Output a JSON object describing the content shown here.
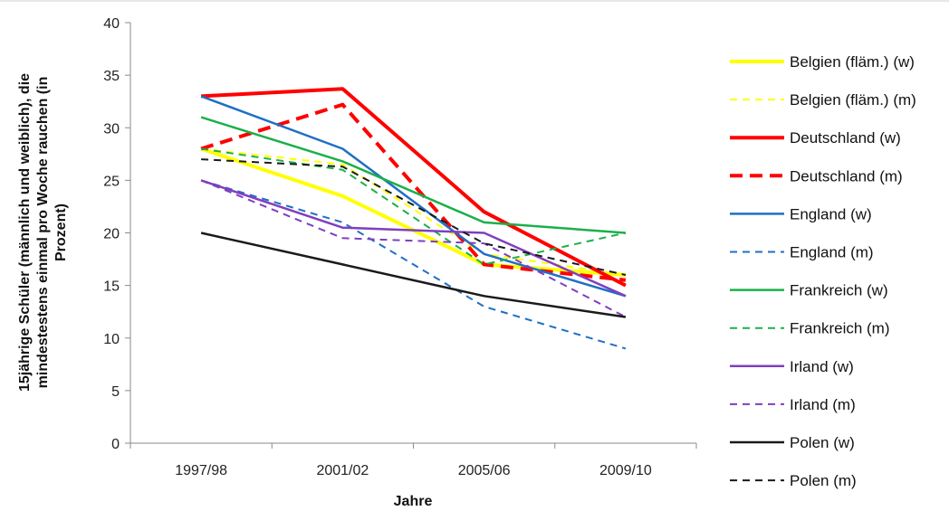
{
  "chart_data": {
    "type": "line",
    "title": "",
    "xlabel": "Jahre",
    "ylabel": "15jährige Schüler (männlich und weiblich), die mindestestens einmal pro Woche rauchen (in Prozent)",
    "ylabel_lines": [
      "15jährige Schüler (männlich und weiblich), die",
      "mindestestens einmal pro Woche rauchen (in",
      "Prozent)"
    ],
    "categories": [
      "1997/98",
      "2001/02",
      "2005/06",
      "2009/10"
    ],
    "ylim": [
      0,
      40
    ],
    "yticks": [
      0,
      5,
      10,
      15,
      20,
      25,
      30,
      35,
      40
    ],
    "ytick_labels": [
      "0",
      "5",
      "10",
      "15",
      "20",
      "25",
      "30",
      "35",
      "40"
    ],
    "grid": false,
    "legend_position": "right",
    "series": [
      {
        "name": "Belgien (fläm.) (w)",
        "values": [
          28,
          23.5,
          17,
          16
        ],
        "color": "#ffff00",
        "dash": "solid",
        "width": 4
      },
      {
        "name": "Belgien (fläm.) (m)",
        "values": [
          28,
          26.5,
          18,
          16
        ],
        "color": "#ffff00",
        "dash": "dashed",
        "width": 2
      },
      {
        "name": "Deutschland (w)",
        "values": [
          33,
          33.7,
          22,
          15
        ],
        "color": "#ff0000",
        "dash": "solid",
        "width": 4
      },
      {
        "name": "Deutschland (m)",
        "values": [
          28,
          32.2,
          17,
          15.5
        ],
        "color": "#ff0000",
        "dash": "dashed",
        "width": 4
      },
      {
        "name": "England (w)",
        "values": [
          33,
          28,
          18,
          14
        ],
        "color": "#1f6fc5",
        "dash": "solid",
        "width": 2.5
      },
      {
        "name": "England (m)",
        "values": [
          25,
          21,
          13,
          9
        ],
        "color": "#1f6fc5",
        "dash": "dashed",
        "width": 2
      },
      {
        "name": "Frankreich (w)",
        "values": [
          31,
          26.8,
          21,
          20
        ],
        "color": "#1ab04a",
        "dash": "solid",
        "width": 2.5
      },
      {
        "name": "Frankreich (m)",
        "values": [
          28,
          26,
          17,
          20
        ],
        "color": "#1ab04a",
        "dash": "dashed",
        "width": 2
      },
      {
        "name": "Irland (w)",
        "values": [
          25,
          20.5,
          20,
          14
        ],
        "color": "#7f3fbf",
        "dash": "solid",
        "width": 2.5
      },
      {
        "name": "Irland (m)",
        "values": [
          25,
          19.5,
          19,
          12
        ],
        "color": "#7f3fbf",
        "dash": "dashed",
        "width": 2
      },
      {
        "name": "Polen (w)",
        "values": [
          20,
          17,
          14,
          12
        ],
        "color": "#1a1a1a",
        "dash": "solid",
        "width": 2.5
      },
      {
        "name": "Polen (m)",
        "values": [
          27,
          26.3,
          19,
          16
        ],
        "color": "#1a1a1a",
        "dash": "dashed",
        "width": 2
      }
    ]
  }
}
